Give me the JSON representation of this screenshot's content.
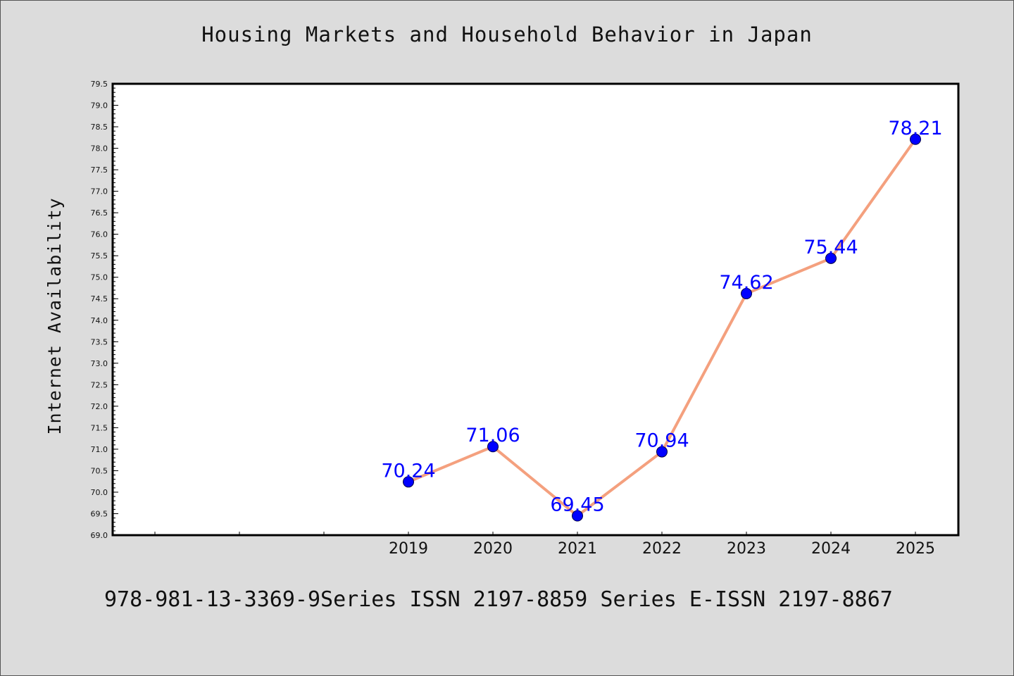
{
  "chart_data": {
    "type": "line",
    "title": "Housing Markets and Household Behavior in Japan",
    "xlabel": "",
    "ylabel": "Internet Availability",
    "categories": [
      "2019",
      "2020",
      "2021",
      "2022",
      "2023",
      "2024",
      "2025"
    ],
    "series": [
      {
        "values": [
          70.24,
          71.06,
          69.45,
          70.94,
          74.62,
          75.44,
          78.21
        ],
        "labels": [
          "70.24",
          "71.06",
          "69.45",
          "70.94",
          "74.62",
          "75.44",
          "78.21"
        ]
      }
    ],
    "ylim": [
      69.0,
      79.5
    ],
    "y_ticks": [
      "69.0",
      "69.5",
      "70.0",
      "70.5",
      "71.0",
      "71.5",
      "72.0",
      "72.5",
      "73.0",
      "73.5",
      "74.0",
      "74.5",
      "75.0",
      "75.5",
      "76.0",
      "76.5",
      "77.0",
      "77.5",
      "78.0",
      "78.5",
      "79.0",
      "79.5"
    ],
    "grid": false,
    "line_color": "#f4a07e",
    "marker_color": "#0000ff",
    "label_color": "#0000ff"
  },
  "footer": {
    "text": "978-981-13-3369-9Series ISSN 2197-8859 Series E-ISSN 2197-8867"
  }
}
